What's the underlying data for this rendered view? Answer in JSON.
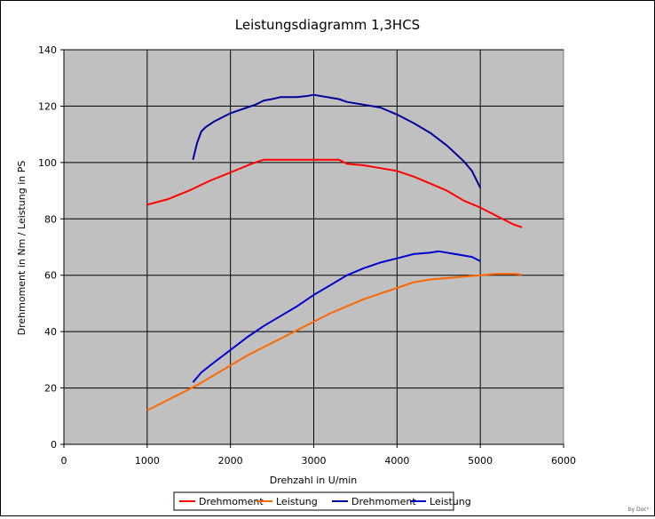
{
  "chart_data": {
    "type": "line",
    "title": "Leistungsdiagramm 1,3HCS",
    "xlabel": "Drehzahl in U/min",
    "ylabel": "Drehmoment in Nm / Leistung in PS",
    "xlim": [
      0,
      6000
    ],
    "ylim": [
      0,
      140
    ],
    "x_ticks": [
      0,
      1000,
      2000,
      3000,
      4000,
      5000,
      6000
    ],
    "y_ticks": [
      0,
      20,
      40,
      60,
      80,
      100,
      120,
      140
    ],
    "grid": true,
    "legend_position": "bottom",
    "plot_background": "#c0c0c0",
    "credit": "by Doc²",
    "series": [
      {
        "name": "Drehmoment",
        "color": "#ff0000",
        "x": [
          1000,
          1250,
          1500,
          1750,
          2000,
          2250,
          2400,
          2600,
          2800,
          3000,
          3200,
          3300,
          3400,
          3600,
          3800,
          4000,
          4200,
          4400,
          4600,
          4800,
          5000,
          5200,
          5400,
          5500
        ],
        "y": [
          85,
          87,
          90,
          93.5,
          96.5,
          99.5,
          101,
          101,
          101,
          101,
          101,
          101,
          99.5,
          99,
          98,
          97,
          95,
          92.5,
          90,
          86.5,
          84,
          81,
          78,
          77
        ]
      },
      {
        "name": "Leistung",
        "color": "#ff6600",
        "x": [
          1000,
          1200,
          1400,
          1600,
          1800,
          2000,
          2200,
          2400,
          2600,
          2800,
          3000,
          3200,
          3400,
          3600,
          3800,
          4000,
          4200,
          4400,
          4600,
          4800,
          5000,
          5200,
          5400,
          5500
        ],
        "y": [
          12,
          15,
          18,
          21,
          24.5,
          28,
          31.5,
          34.5,
          37.5,
          40.5,
          43.5,
          46.5,
          49,
          51.5,
          53.5,
          55.5,
          57.5,
          58.5,
          59,
          59.5,
          60,
          60.5,
          60.5,
          60.2
        ]
      },
      {
        "name": "Drehmoment",
        "color": "#000099",
        "x": [
          1550,
          1600,
          1650,
          1700,
          1800,
          1900,
          2000,
          2100,
          2200,
          2300,
          2400,
          2500,
          2600,
          2800,
          2900,
          3000,
          3100,
          3200,
          3300,
          3400,
          3600,
          3800,
          4000,
          4200,
          4400,
          4600,
          4800,
          4900,
          5000
        ],
        "y": [
          101,
          107,
          111,
          112.5,
          114.5,
          116,
          117.5,
          118.5,
          119.5,
          120.5,
          122,
          122.5,
          123.2,
          123.2,
          123.5,
          124,
          123.5,
          123,
          122.5,
          121.5,
          120.5,
          119.5,
          117,
          114,
          110.5,
          106,
          100.5,
          97,
          91
        ]
      },
      {
        "name": "Leistung",
        "color": "#0000cc",
        "x": [
          1550,
          1650,
          1800,
          2000,
          2200,
          2400,
          2600,
          2800,
          3000,
          3200,
          3400,
          3600,
          3800,
          4000,
          4200,
          4400,
          4500,
          4600,
          4800,
          4900,
          5000
        ],
        "y": [
          22,
          25.5,
          29,
          33.5,
          38,
          42,
          45.5,
          49,
          53,
          56.5,
          60,
          62.5,
          64.5,
          66,
          67.5,
          68,
          68.5,
          68,
          67,
          66.5,
          65
        ]
      }
    ]
  }
}
